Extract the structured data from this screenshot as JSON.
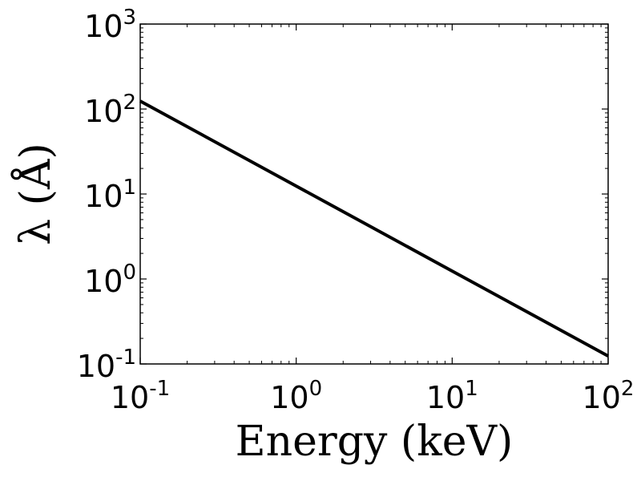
{
  "chart_data": {
    "type": "line",
    "x_scale": "log",
    "y_scale": "log",
    "xlabel": "Energy (keV)",
    "ylabel": "λ (Å)",
    "xlim": [
      0.1,
      100
    ],
    "ylim": [
      0.1,
      1000
    ],
    "grid": false,
    "line_color": "#000000",
    "x_ticks": [
      {
        "base": "10",
        "exp": "-1",
        "value": 0.1
      },
      {
        "base": "10",
        "exp": "0",
        "value": 1
      },
      {
        "base": "10",
        "exp": "1",
        "value": 10
      },
      {
        "base": "10",
        "exp": "2",
        "value": 100
      }
    ],
    "y_ticks": [
      {
        "base": "10",
        "exp": "-1",
        "value": 0.1
      },
      {
        "base": "10",
        "exp": "0",
        "value": 1
      },
      {
        "base": "10",
        "exp": "1",
        "value": 10
      },
      {
        "base": "10",
        "exp": "2",
        "value": 100
      },
      {
        "base": "10",
        "exp": "3",
        "value": 1000
      }
    ],
    "series": [
      {
        "x": [
          0.1,
          1,
          10,
          100
        ],
        "y": [
          124,
          12.4,
          1.24,
          0.124
        ]
      }
    ]
  }
}
